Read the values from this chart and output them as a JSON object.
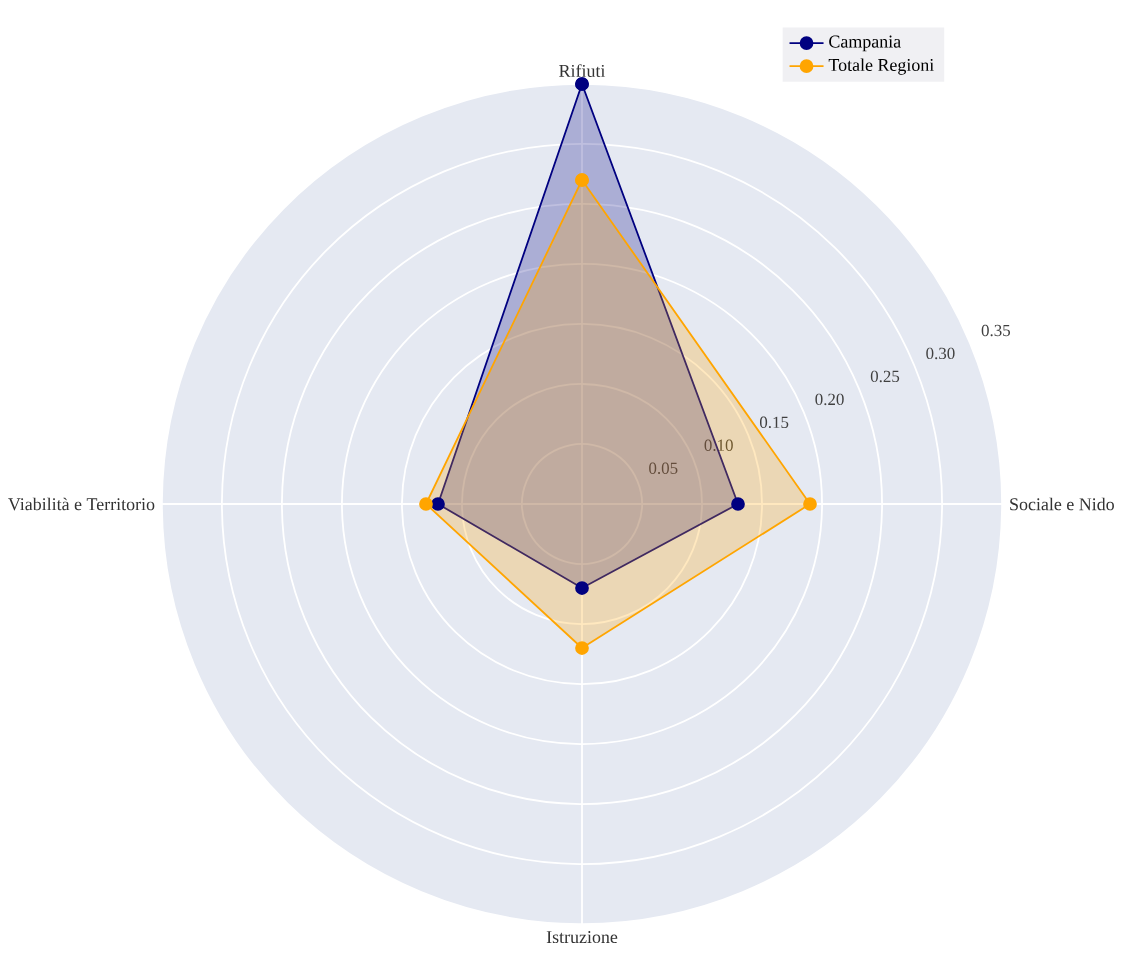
{
  "chart_data": {
    "type": "radar",
    "categories": [
      "Rifiuti",
      "Sociale e Nido",
      "Istruzione",
      "Viabilità e Territorio"
    ],
    "series": [
      {
        "name": "Campania",
        "color": "#000080",
        "values": [
          0.35,
          0.13,
          0.07,
          0.12
        ]
      },
      {
        "name": "Totale Regioni",
        "color": "#ffa500",
        "values": [
          0.27,
          0.19,
          0.12,
          0.13
        ]
      }
    ],
    "ylim": [
      0,
      0.35
    ],
    "yticks": [
      0.05,
      {
        "value": 0.1,
        "label": "0.10"
      },
      0.15,
      {
        "value": 0.2,
        "label": "0.20"
      },
      0.25,
      {
        "value": 0.3,
        "label": "0.30"
      },
      0.35
    ],
    "grid": true,
    "legend": "top right",
    "marker": "circle"
  }
}
